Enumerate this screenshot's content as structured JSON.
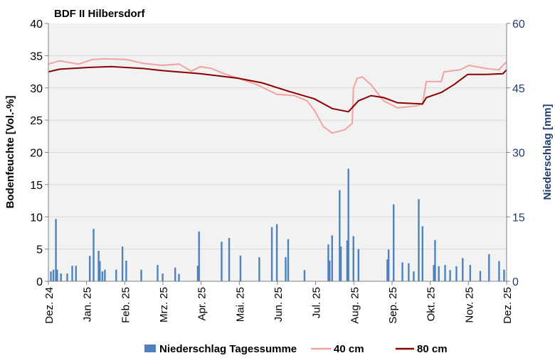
{
  "chart_data": {
    "type": "bar+line",
    "title": "BDF II Hilbersdorf",
    "ylabel": "Bodenfeuchte [Vol.-%]",
    "y2label": "Niederschlag [mm]",
    "ylim": [
      0,
      40
    ],
    "y2lim": [
      0,
      60
    ],
    "yticks": [
      "0",
      "5",
      "10",
      "15",
      "20",
      "25",
      "30",
      "35",
      "40"
    ],
    "y2ticks": [
      "0",
      "15",
      "30",
      "45",
      "60"
    ],
    "xlim": [
      "2024-12-01",
      "2025-12-01"
    ],
    "xticks": [
      "Dez. 24",
      "Jan. 25",
      "Feb. 25",
      "Mrz. 25",
      "Apr. 25",
      "Mai. 25",
      "Jun. 25",
      "Jul. 25",
      "Aug. 25",
      "Sep. 25",
      "Okt. 25",
      "Nov. 25",
      "Dez. 25"
    ],
    "grid": true,
    "legend_position": "bottom",
    "colors": {
      "precip": "#4f81bd",
      "cm40": "#f4a1a1",
      "cm80": "#8b0000",
      "plot_bg": "#f2f2f2",
      "right_axis": "#1f3c6e"
    },
    "series": [
      {
        "name": "Niederschlag Tagessumme",
        "type": "bar",
        "axis": "right",
        "points": [
          [
            "2024-12-03",
            2.3
          ],
          [
            "2024-12-05",
            2.7
          ],
          [
            "2024-12-07",
            14.5
          ],
          [
            "2024-12-08",
            2.7
          ],
          [
            "2024-12-11",
            1.8
          ],
          [
            "2024-12-16",
            1.8
          ],
          [
            "2024-12-20",
            3.6
          ],
          [
            "2024-12-23",
            3.6
          ],
          [
            "2025-01-03",
            5.9
          ],
          [
            "2025-01-06",
            12.2
          ],
          [
            "2025-01-10",
            7.1
          ],
          [
            "2025-01-11",
            4.7
          ],
          [
            "2025-01-13",
            2.3
          ],
          [
            "2025-01-15",
            2.7
          ],
          [
            "2025-01-24",
            2.7
          ],
          [
            "2025-01-29",
            8.1
          ],
          [
            "2025-02-01",
            4.8
          ],
          [
            "2025-02-13",
            2.7
          ],
          [
            "2025-02-26",
            3.8
          ],
          [
            "2025-03-02",
            1.8
          ],
          [
            "2025-03-12",
            3.2
          ],
          [
            "2025-03-15",
            1.7
          ],
          [
            "2025-03-30",
            3.6
          ],
          [
            "2025-03-31",
            11.6
          ],
          [
            "2025-04-18",
            9.2
          ],
          [
            "2025-04-24",
            10.1
          ],
          [
            "2025-05-03",
            6.0
          ],
          [
            "2025-05-18",
            5.6
          ],
          [
            "2025-05-28",
            12.6
          ],
          [
            "2025-06-01",
            13.3
          ],
          [
            "2025-06-08",
            5.6
          ],
          [
            "2025-06-10",
            9.8
          ],
          [
            "2025-06-23",
            2.6
          ],
          [
            "2025-07-12",
            8.6
          ],
          [
            "2025-07-13",
            4.8
          ],
          [
            "2025-07-15",
            10.7
          ],
          [
            "2025-07-21",
            21.2
          ],
          [
            "2025-07-22",
            8.1
          ],
          [
            "2025-07-27",
            9.5
          ],
          [
            "2025-07-28",
            26.2
          ],
          [
            "2025-08-01",
            10.5
          ],
          [
            "2025-08-05",
            7.5
          ],
          [
            "2025-08-28",
            5.1
          ],
          [
            "2025-08-29",
            7.4
          ],
          [
            "2025-09-02",
            17.9
          ],
          [
            "2025-09-09",
            4.4
          ],
          [
            "2025-09-14",
            4.2
          ],
          [
            "2025-09-18",
            2.3
          ],
          [
            "2025-09-22",
            19.1
          ],
          [
            "2025-09-25",
            12.8
          ],
          [
            "2025-10-04",
            3.8
          ],
          [
            "2025-10-05",
            9.6
          ],
          [
            "2025-10-08",
            3.5
          ],
          [
            "2025-10-13",
            3.8
          ],
          [
            "2025-10-17",
            2.6
          ],
          [
            "2025-10-22",
            3.5
          ],
          [
            "2025-10-27",
            5.4
          ],
          [
            "2025-11-02",
            3.8
          ],
          [
            "2025-11-10",
            2.4
          ],
          [
            "2025-11-17",
            6.3
          ],
          [
            "2025-11-25",
            4.7
          ],
          [
            "2025-11-29",
            2.7
          ]
        ]
      },
      {
        "name": "40 cm",
        "type": "line",
        "axis": "left",
        "points": [
          [
            "2024-12-01",
            33.7
          ],
          [
            "2024-12-10",
            34.2
          ],
          [
            "2024-12-25",
            33.7
          ],
          [
            "2025-01-05",
            34.4
          ],
          [
            "2025-01-15",
            34.5
          ],
          [
            "2025-02-01",
            34.4
          ],
          [
            "2025-02-15",
            33.8
          ],
          [
            "2025-03-01",
            33.5
          ],
          [
            "2025-03-15",
            33.7
          ],
          [
            "2025-03-25",
            32.6
          ],
          [
            "2025-04-01",
            33.3
          ],
          [
            "2025-04-10",
            33.0
          ],
          [
            "2025-04-20",
            32.2
          ],
          [
            "2025-05-01",
            31.5
          ],
          [
            "2025-05-15",
            30.6
          ],
          [
            "2025-06-01",
            29.0
          ],
          [
            "2025-06-15",
            28.8
          ],
          [
            "2025-06-25",
            28.0
          ],
          [
            "2025-07-01",
            26.5
          ],
          [
            "2025-07-08",
            24.0
          ],
          [
            "2025-07-15",
            23.0
          ],
          [
            "2025-07-25",
            23.5
          ],
          [
            "2025-07-31",
            24.5
          ],
          [
            "2025-08-01",
            30.0
          ],
          [
            "2025-08-04",
            31.5
          ],
          [
            "2025-08-08",
            31.7
          ],
          [
            "2025-08-15",
            30.5
          ],
          [
            "2025-08-25",
            28.0
          ],
          [
            "2025-09-05",
            26.9
          ],
          [
            "2025-09-20",
            27.2
          ],
          [
            "2025-09-25",
            27.5
          ],
          [
            "2025-09-28",
            31.0
          ],
          [
            "2025-10-10",
            31.0
          ],
          [
            "2025-10-12",
            32.5
          ],
          [
            "2025-10-25",
            32.8
          ],
          [
            "2025-11-01",
            33.5
          ],
          [
            "2025-11-15",
            33.0
          ],
          [
            "2025-11-25",
            32.8
          ],
          [
            "2025-11-28",
            33.5
          ],
          [
            "2025-12-01",
            34.0
          ]
        ]
      },
      {
        "name": "80 cm",
        "type": "line",
        "axis": "left",
        "points": [
          [
            "2024-12-01",
            32.5
          ],
          [
            "2024-12-10",
            32.9
          ],
          [
            "2025-01-05",
            33.2
          ],
          [
            "2025-01-20",
            33.3
          ],
          [
            "2025-02-15",
            33.0
          ],
          [
            "2025-03-01",
            32.7
          ],
          [
            "2025-04-01",
            32.2
          ],
          [
            "2025-05-01",
            31.5
          ],
          [
            "2025-05-20",
            30.8
          ],
          [
            "2025-06-10",
            29.5
          ],
          [
            "2025-07-01",
            28.3
          ],
          [
            "2025-07-15",
            26.8
          ],
          [
            "2025-07-28",
            26.3
          ],
          [
            "2025-08-05",
            28.0
          ],
          [
            "2025-08-15",
            28.8
          ],
          [
            "2025-08-25",
            28.5
          ],
          [
            "2025-09-05",
            27.7
          ],
          [
            "2025-09-25",
            27.5
          ],
          [
            "2025-09-28",
            28.5
          ],
          [
            "2025-10-10",
            29.3
          ],
          [
            "2025-10-20",
            30.5
          ],
          [
            "2025-10-31",
            32.1
          ],
          [
            "2025-11-15",
            32.1
          ],
          [
            "2025-11-28",
            32.2
          ],
          [
            "2025-12-01",
            32.8
          ]
        ]
      }
    ]
  }
}
